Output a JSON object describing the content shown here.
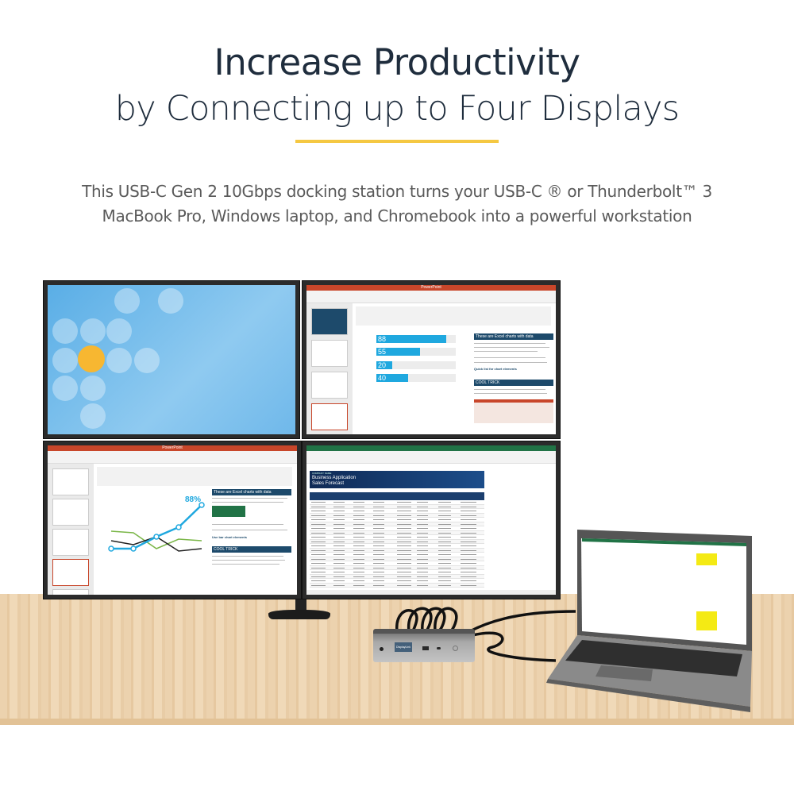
{
  "heading": {
    "line1": "Increase Productivity",
    "line2": "by Connecting up to Four Displays"
  },
  "subtitle": {
    "line1": "This USB-C Gen 2 10Gbps docking station turns your USB-C ® or Thunderbolt™ 3",
    "line2": "MacBook Pro, Windows laptop, and Chromebook into a powerful workstation"
  },
  "colors": {
    "heading": "#1f2d3d",
    "accent_rule": "#f5c842",
    "chart_blue": "#1fa8df",
    "chart_green": "#7ab648",
    "ppt_red": "#c8462a",
    "excel_green": "#217346",
    "slide_header": "#1d4a6b"
  },
  "monitors": {
    "top_left": {
      "content": "desktop-wallpaper"
    },
    "top_right": {
      "app": "PowerPoint",
      "panel_title": "These are Excel charts with data",
      "panel_title2": "Quick list for chart elements",
      "panel_title3": "COOL TRICK",
      "bars": [
        {
          "label": "88",
          "value": 88
        },
        {
          "label": "55",
          "value": 55
        },
        {
          "label": "20",
          "value": 20
        },
        {
          "label": "40",
          "value": 40
        }
      ]
    },
    "bottom_left": {
      "app": "PowerPoint",
      "callout": "88%",
      "panel_title": "These are Excel charts with data",
      "panel_title2": "Use bar chart elements",
      "panel_title3": "COOL TRICK"
    },
    "bottom_right": {
      "app": "Excel",
      "banner_small": "COMPANY NAME",
      "banner_title": "Business Application",
      "banner_subtitle": "Sales Forecast"
    }
  },
  "dock": {
    "brand": "DisplayLink"
  }
}
